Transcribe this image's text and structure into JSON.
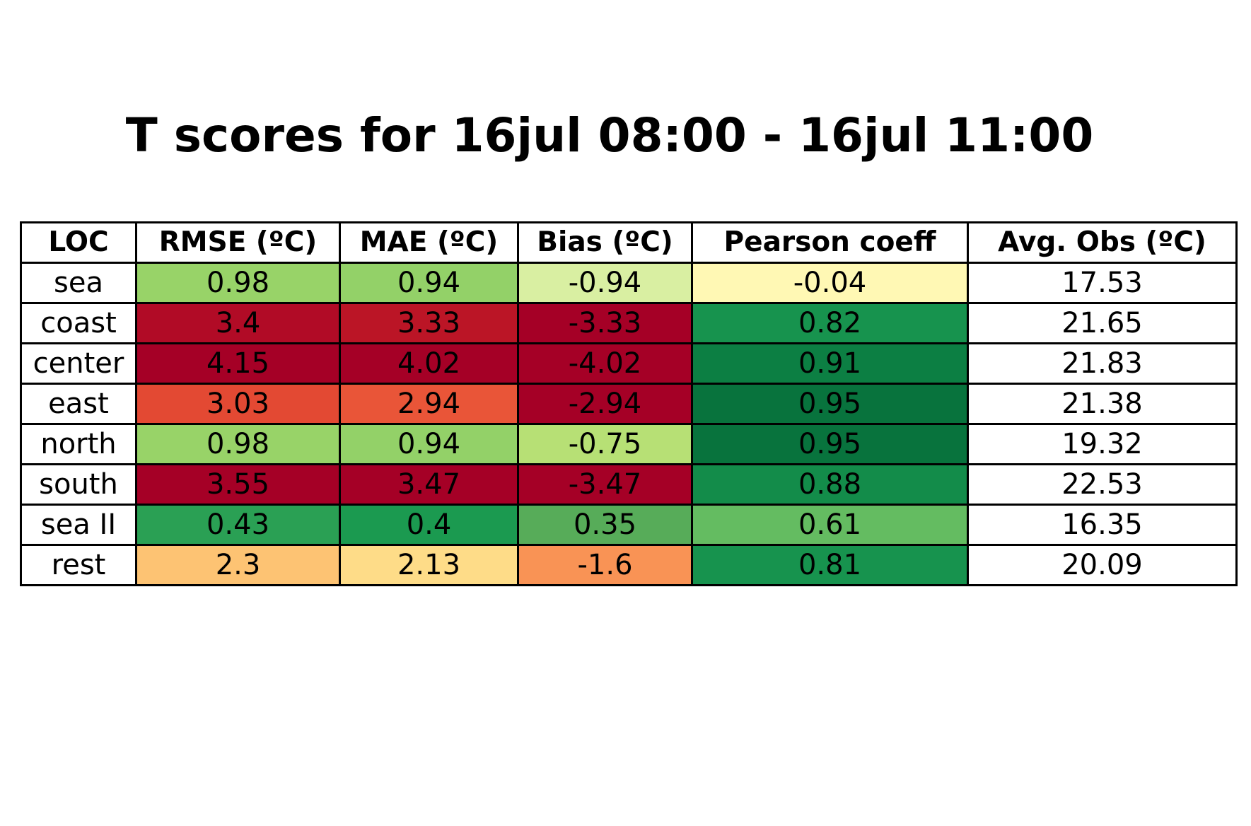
{
  "chart_data": {
    "type": "table",
    "title": "T scores for 16jul 08:00 - 16jul 11:00",
    "columns": [
      "LOC",
      "RMSE (ºC)",
      "MAE (ºC)",
      "Bias (ºC)",
      "Pearson coeff",
      "Avg. Obs (ºC)"
    ],
    "rows": [
      {
        "loc": "sea",
        "values": [
          "0.98",
          "0.94",
          "-0.94",
          "-0.04",
          "17.53"
        ],
        "colors": [
          "#98d368",
          "#93d168",
          "#d9efa2",
          "#fff8b4",
          "#ffffff"
        ]
      },
      {
        "loc": "coast",
        "values": [
          "3.4",
          "3.33",
          "-3.33",
          "0.82",
          "21.65"
        ],
        "colors": [
          "#b10b26",
          "#bb1526",
          "#a50026",
          "#17934e",
          "#ffffff"
        ]
      },
      {
        "loc": "center",
        "values": [
          "4.15",
          "4.02",
          "-4.02",
          "0.91",
          "21.83"
        ],
        "colors": [
          "#a50026",
          "#a50026",
          "#a50026",
          "#0c7f43",
          "#ffffff"
        ]
      },
      {
        "loc": "east",
        "values": [
          "3.03",
          "2.94",
          "-2.94",
          "0.95",
          "21.38"
        ],
        "colors": [
          "#e34933",
          "#e95538",
          "#a50026",
          "#08733d",
          "#ffffff"
        ]
      },
      {
        "loc": "north",
        "values": [
          "0.98",
          "0.94",
          "-0.75",
          "0.95",
          "19.32"
        ],
        "colors": [
          "#98d368",
          "#93d168",
          "#b7e075",
          "#08733d",
          "#ffffff"
        ]
      },
      {
        "loc": "south",
        "values": [
          "3.55",
          "3.47",
          "-3.47",
          "0.88",
          "22.53"
        ],
        "colors": [
          "#a50026",
          "#a50026",
          "#a50026",
          "#138c4a",
          "#ffffff"
        ]
      },
      {
        "loc": "sea II",
        "values": [
          "0.43",
          "0.4",
          "0.35",
          "0.61",
          "16.35"
        ],
        "colors": [
          "#2aa054",
          "#1b9a50",
          "#57ac59",
          "#64bc61",
          "#ffffff"
        ]
      },
      {
        "loc": "rest",
        "values": [
          "2.3",
          "2.13",
          "-1.6",
          "0.81",
          "20.09"
        ],
        "colors": [
          "#fdc373",
          "#fedc88",
          "#f99355",
          "#17934e",
          "#ffffff"
        ]
      }
    ]
  }
}
